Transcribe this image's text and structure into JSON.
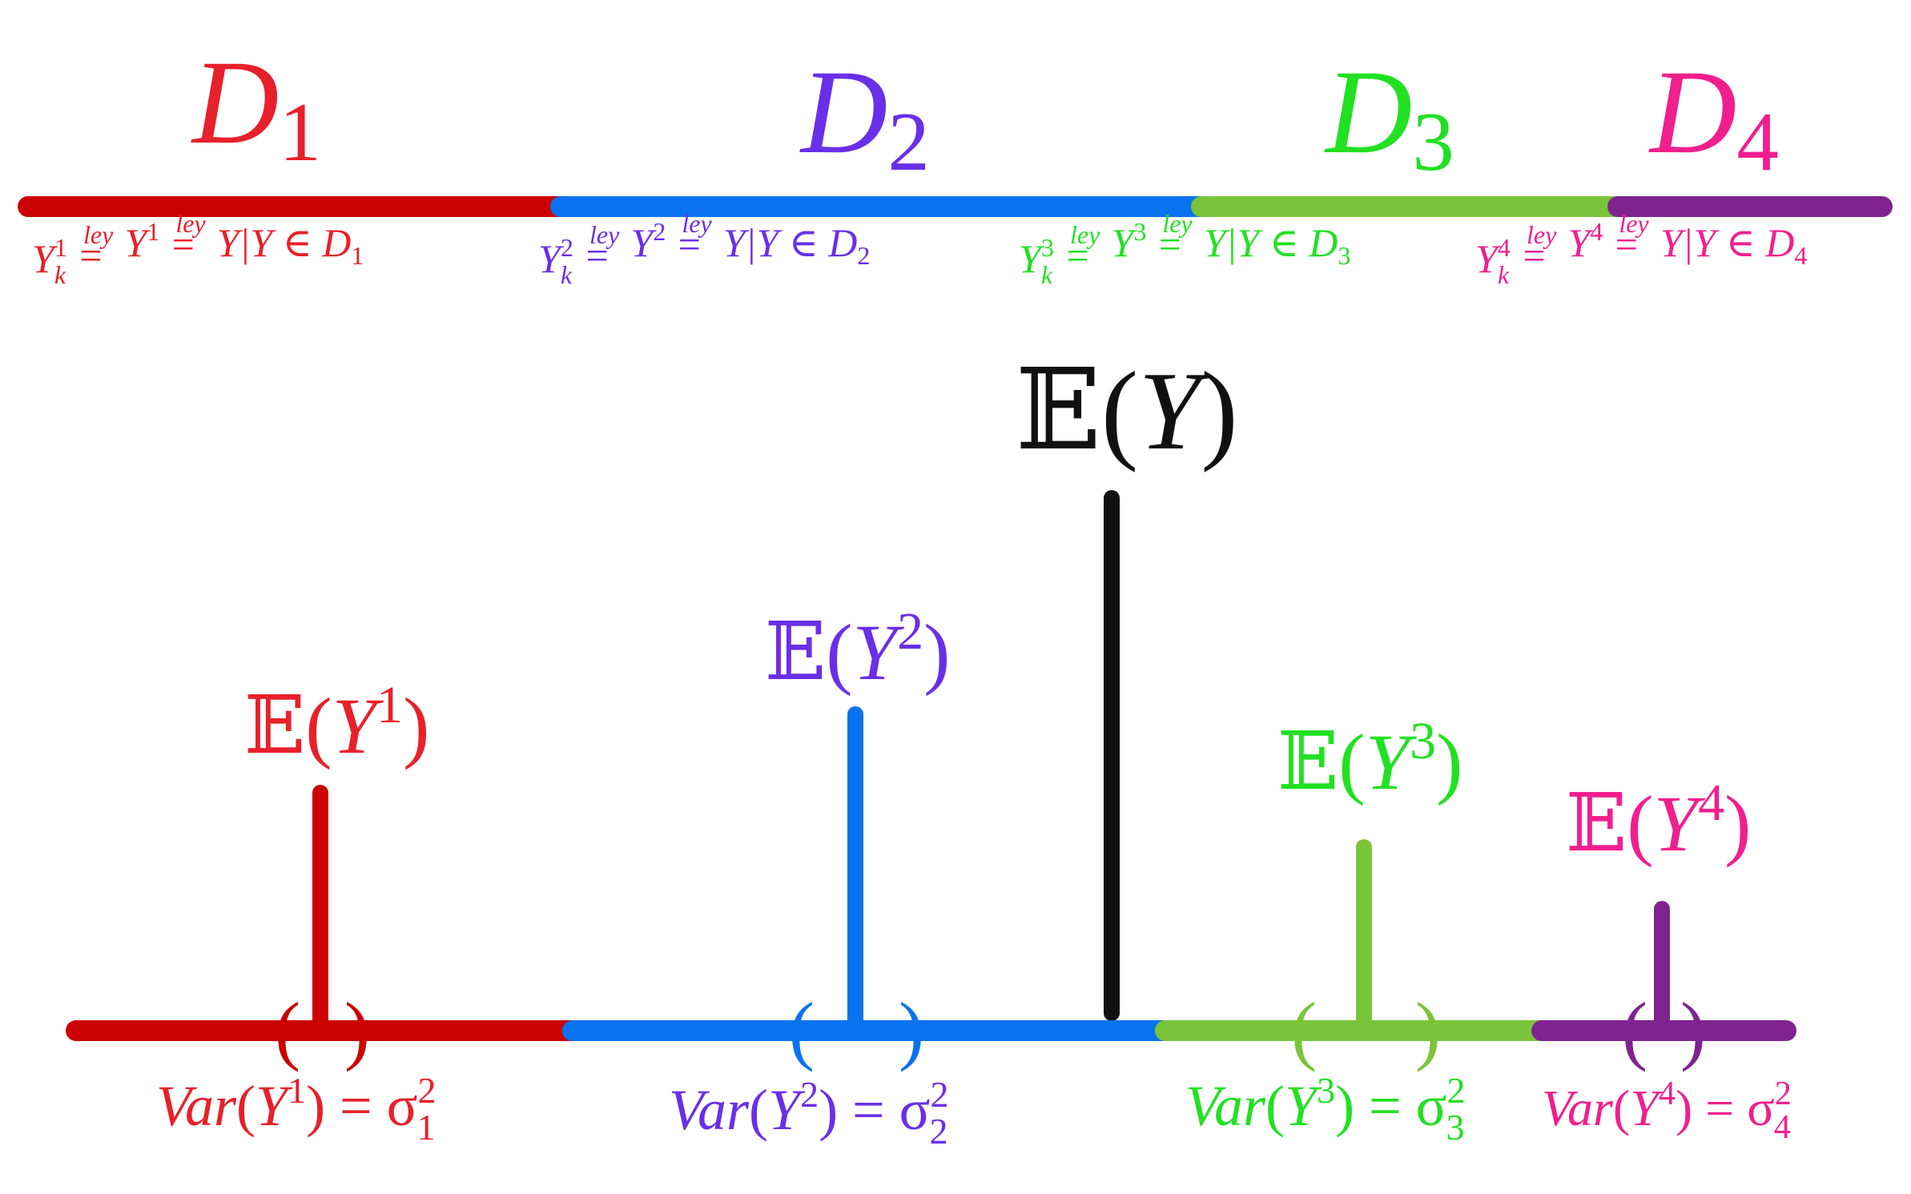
{
  "colors": {
    "d1_text": "#e8202a",
    "d1_line": "#cc0000",
    "d2_text": "#6a2fe8",
    "d2_line": "#0a72ef",
    "d3_text": "#22e022",
    "d3_line": "#7ac43a",
    "d4_text": "#f01f8e",
    "d4_line": "#7e2390",
    "overall": "#111111"
  },
  "domains": [
    {
      "letter": "D",
      "index": "1",
      "law": {
        "yk": "Y",
        "k": "k",
        "sup": "1",
        "ley1": "ley",
        "y": "Y",
        "ysup": "1",
        "ley2": "ley",
        "cond": "Y|Y ∈ D",
        "condidx": "1"
      },
      "mean": {
        "E": "𝔼",
        "open": "(",
        "Y": "Y",
        "sup": "1",
        "close": ")"
      },
      "var": {
        "name": "Var",
        "open": "(",
        "Y": "Y",
        "sup": "1",
        "close": ") = σ",
        "sq": "2",
        "idx": "1"
      }
    },
    {
      "letter": "D",
      "index": "2",
      "law": {
        "yk": "Y",
        "k": "k",
        "sup": "2",
        "ley1": "ley",
        "y": "Y",
        "ysup": "2",
        "ley2": "ley",
        "cond": "Y|Y ∈ D",
        "condidx": "2"
      },
      "mean": {
        "E": "𝔼",
        "open": "(",
        "Y": "Y",
        "sup": "2",
        "close": ")"
      },
      "var": {
        "name": "Var",
        "open": "(",
        "Y": "Y",
        "sup": "2",
        "close": ") = σ",
        "sq": "2",
        "idx": "2"
      }
    },
    {
      "letter": "D",
      "index": "3",
      "law": {
        "yk": "Y",
        "k": "k",
        "sup": "3",
        "ley1": "ley",
        "y": "Y",
        "ysup": "3",
        "ley2": "ley",
        "cond": "Y|Y ∈ D",
        "condidx": "3"
      },
      "mean": {
        "E": "𝔼",
        "open": "(",
        "Y": "Y",
        "sup": "3",
        "close": ")"
      },
      "var": {
        "name": "Var",
        "open": "(",
        "Y": "Y",
        "sup": "3",
        "close": ") = σ",
        "sq": "2",
        "idx": "3"
      }
    },
    {
      "letter": "D",
      "index": "4",
      "law": {
        "yk": "Y",
        "k": "k",
        "sup": "4",
        "ley1": "ley",
        "y": "Y",
        "ysup": "4",
        "ley2": "ley",
        "cond": "Y|Y ∈ D",
        "condidx": "4"
      },
      "mean": {
        "E": "𝔼",
        "open": "(",
        "Y": "Y",
        "sup": "4",
        "close": ")"
      },
      "var": {
        "name": "Var",
        "open": "(",
        "Y": "Y",
        "sup": "4",
        "close": ") = σ",
        "sq": "2",
        "idx": "4"
      }
    }
  ],
  "overall_mean": {
    "E": "𝔼",
    "open": "(",
    "Y": "Y",
    "close": ")"
  },
  "equal_sign": "=",
  "brackets": {
    "left": "(",
    "right": ")"
  }
}
